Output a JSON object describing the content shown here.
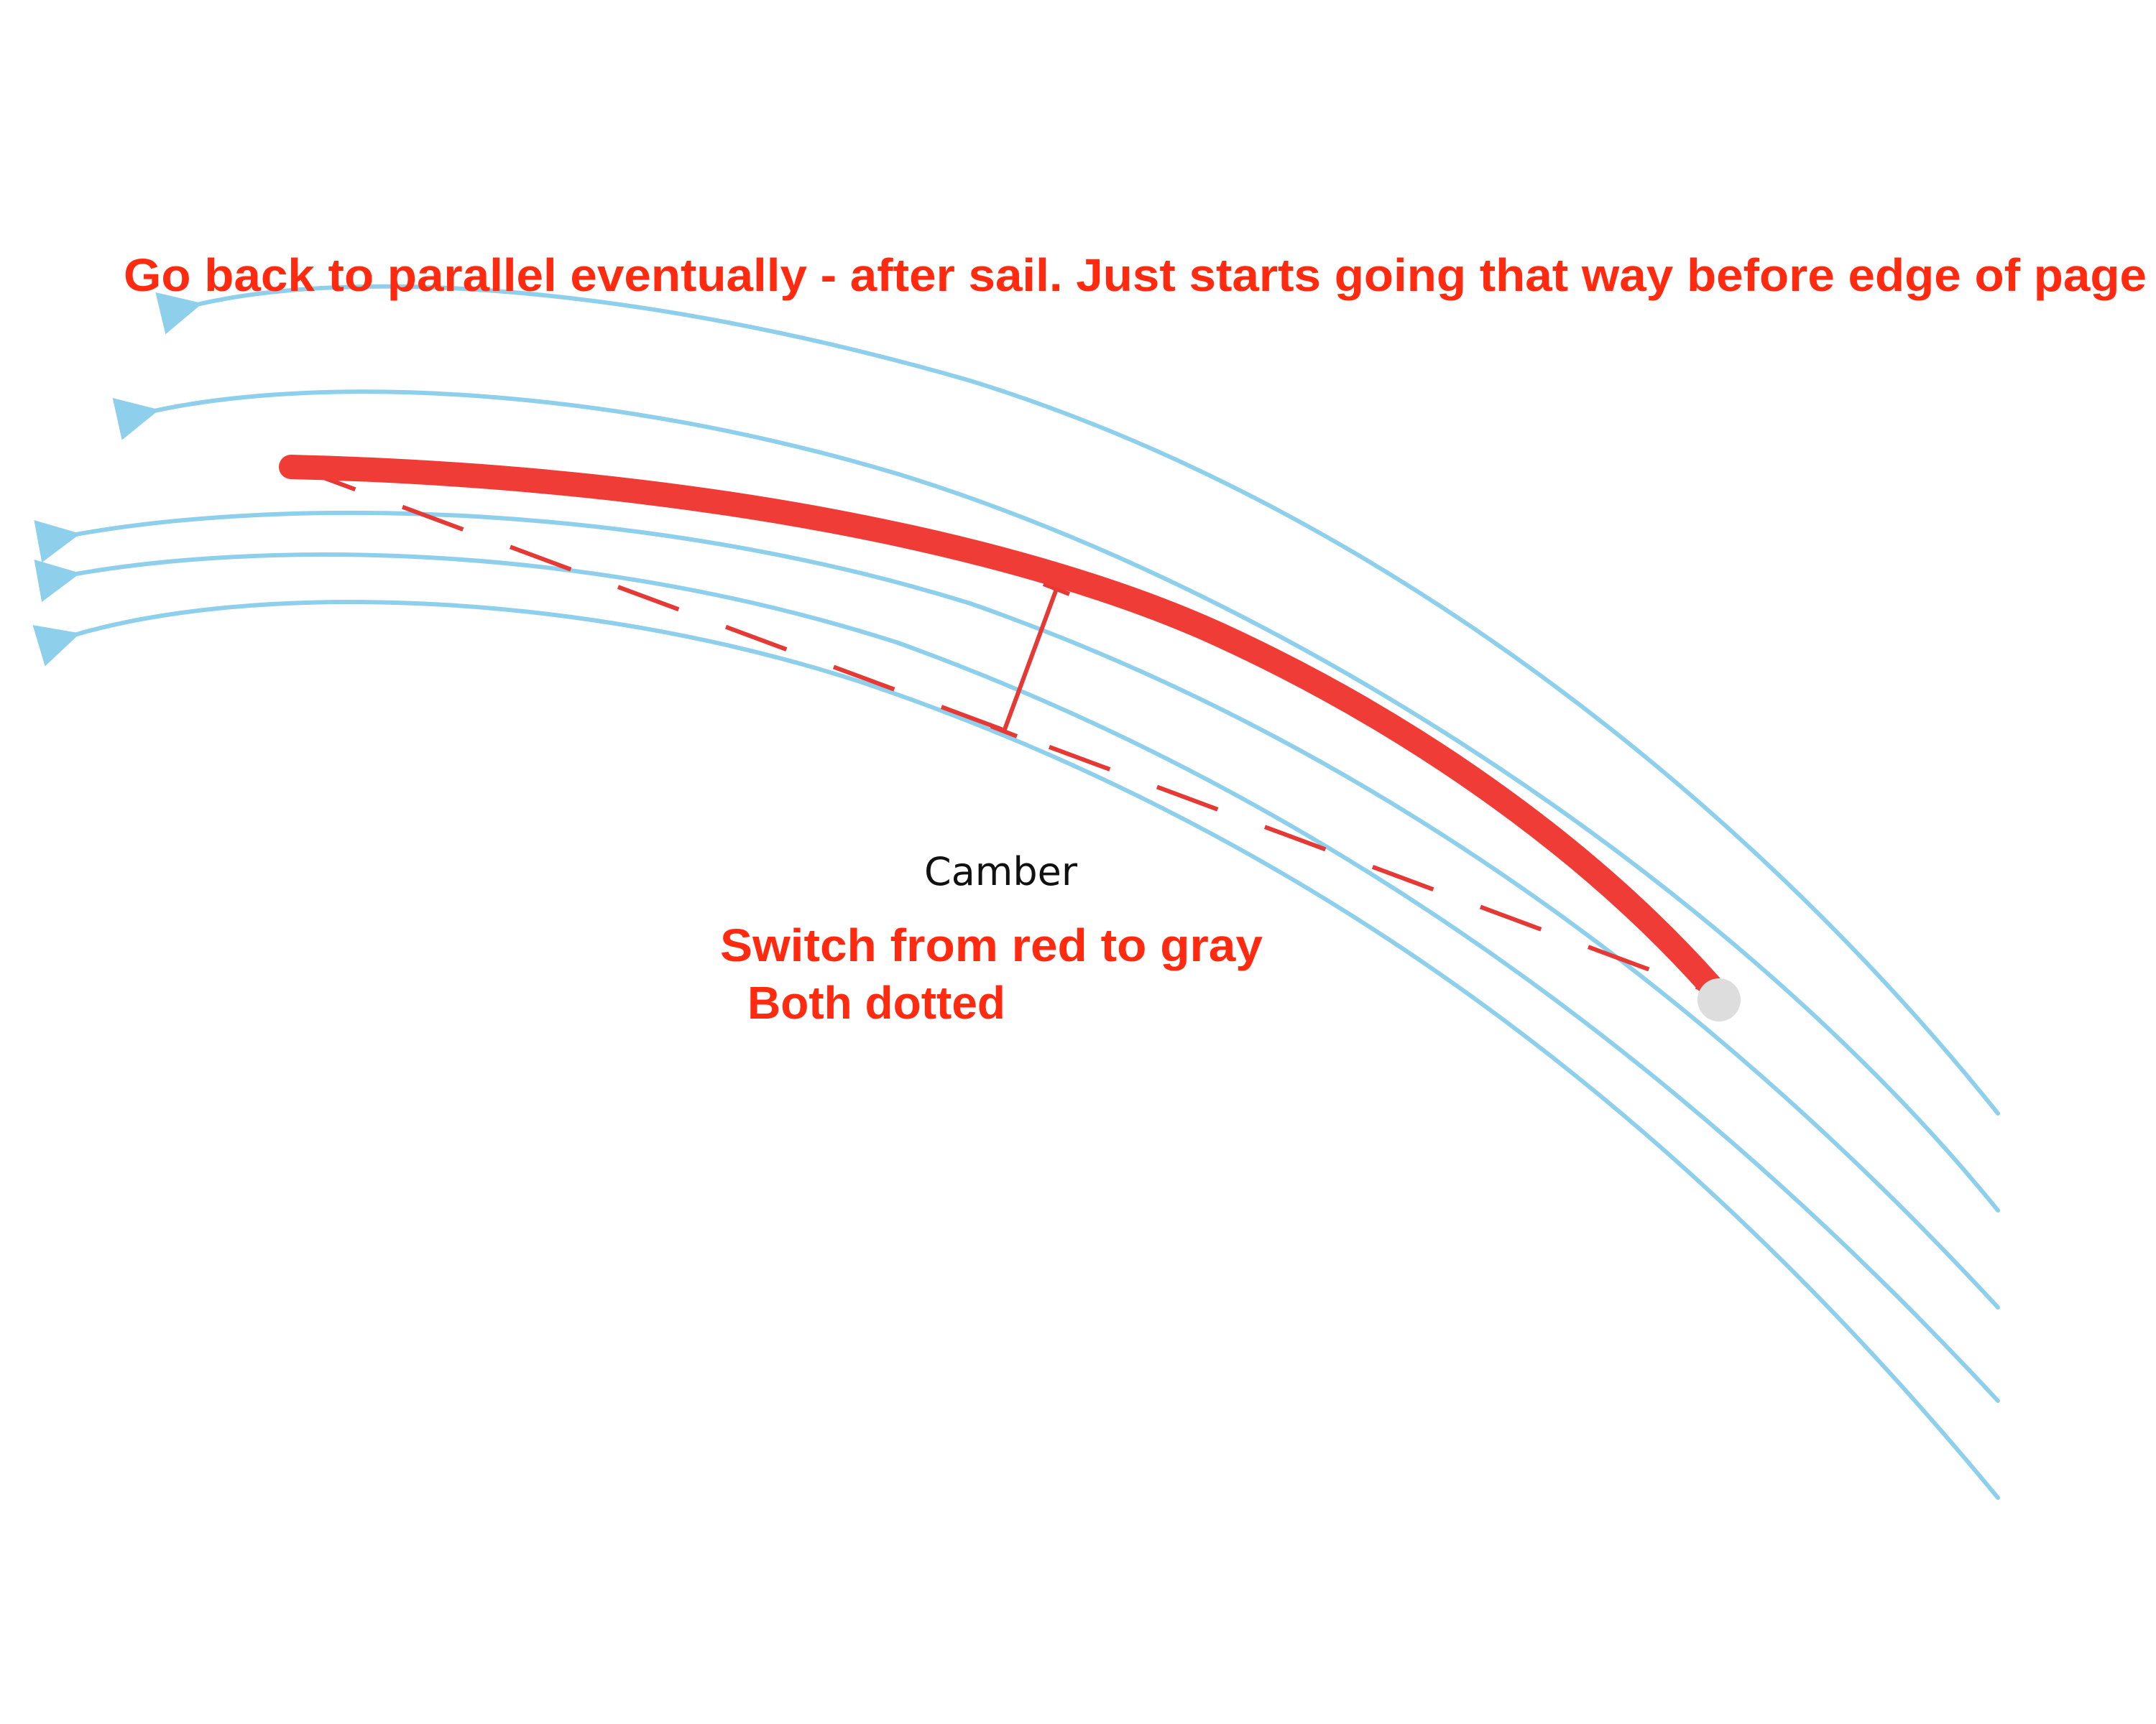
{
  "annotations": {
    "top_note": "Go back to parallel eventually - after sail. Just starts going that way before edge of page",
    "camber_label": "Camber",
    "bottom_note_line1": "Switch from red to gray",
    "bottom_note_line2": "Both dotted"
  },
  "colors": {
    "flow": "#8ed0ec",
    "sail": "#f03c37",
    "chord": "#e53935",
    "note": "#ff2a0f",
    "label": "#111111",
    "mast": "#dddddd"
  }
}
